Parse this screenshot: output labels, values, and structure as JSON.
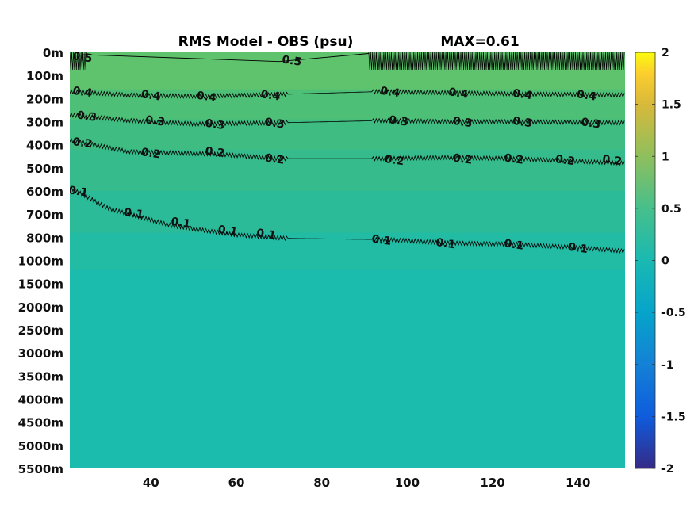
{
  "chart_data": {
    "type": "heatmap",
    "title": "RMS Model - OBS (psu)",
    "max_label": "MAX=0.61",
    "x_ticks": [
      "40",
      "60",
      "80",
      "100",
      "120",
      "140"
    ],
    "x_tick_values": [
      40,
      60,
      80,
      100,
      120,
      140
    ],
    "xlim": [
      21,
      151
    ],
    "y_ticks": [
      "0m",
      "100m",
      "200m",
      "300m",
      "400m",
      "500m",
      "600m",
      "700m",
      "800m",
      "1000m",
      "1500m",
      "2000m",
      "2500m",
      "3000m",
      "3500m",
      "4000m",
      "4500m",
      "5000m",
      "5500m"
    ],
    "y_reversed": true,
    "colorbar": {
      "colormap": "parula",
      "ticks": [
        "2",
        "1.5",
        "1",
        "0.5",
        "0",
        "-0.5",
        "-1",
        "-1.5",
        "-2"
      ],
      "tick_values": [
        2,
        1.5,
        1,
        0.5,
        0,
        -0.5,
        -1,
        -1.5,
        -2
      ],
      "clim": [
        -2,
        2
      ]
    },
    "contour_levels": [
      0.5,
      0.4,
      0.3,
      0.2,
      0.1
    ],
    "contours": [
      {
        "level": 0.4,
        "depth_index": [
          [
            21,
            1.7
          ],
          [
            35,
            1.85
          ],
          [
            50,
            1.9
          ],
          [
            65,
            1.85
          ],
          [
            93,
            1.7
          ],
          [
            110,
            1.75
          ],
          [
            125,
            1.8
          ],
          [
            151,
            1.85
          ]
        ],
        "labels": [
          {
            "text": "0.4",
            "x": 24,
            "d": 1.7
          },
          {
            "text": "0.4",
            "x": 40,
            "d": 1.85
          },
          {
            "text": "0.4",
            "x": 53,
            "d": 1.9
          },
          {
            "text": "0.4",
            "x": 68,
            "d": 1.85
          },
          {
            "text": "0.4",
            "x": 96,
            "d": 1.7
          },
          {
            "text": "0.4",
            "x": 112,
            "d": 1.75
          },
          {
            "text": "0.4",
            "x": 127,
            "d": 1.8
          },
          {
            "text": "0.4",
            "x": 142,
            "d": 1.85
          }
        ]
      },
      {
        "level": 0.3,
        "depth_index": [
          [
            21,
            2.7
          ],
          [
            35,
            2.95
          ],
          [
            50,
            3.1
          ],
          [
            70,
            3.05
          ],
          [
            95,
            2.95
          ],
          [
            110,
            3.0
          ],
          [
            125,
            3.0
          ],
          [
            151,
            3.05
          ]
        ],
        "labels": [
          {
            "text": "0.3",
            "x": 25,
            "d": 2.75
          },
          {
            "text": "0.3",
            "x": 41,
            "d": 2.95
          },
          {
            "text": "0.3",
            "x": 55,
            "d": 3.1
          },
          {
            "text": "0.3",
            "x": 69,
            "d": 3.05
          },
          {
            "text": "0.3",
            "x": 98,
            "d": 2.95
          },
          {
            "text": "0.3",
            "x": 113,
            "d": 3.0
          },
          {
            "text": "0.3",
            "x": 127,
            "d": 3.0
          },
          {
            "text": "0.3",
            "x": 143,
            "d": 3.05
          }
        ]
      },
      {
        "level": 0.2,
        "depth_index": [
          [
            21,
            3.8
          ],
          [
            35,
            4.3
          ],
          [
            55,
            4.4
          ],
          [
            70,
            4.6
          ],
          [
            93,
            4.6
          ],
          [
            110,
            4.55
          ],
          [
            125,
            4.6
          ],
          [
            151,
            4.8
          ]
        ],
        "labels": [
          {
            "text": "0.2",
            "x": 24,
            "d": 3.9
          },
          {
            "text": "0.2",
            "x": 40,
            "d": 4.35
          },
          {
            "text": "0.2",
            "x": 55,
            "d": 4.3
          },
          {
            "text": "0.2",
            "x": 69,
            "d": 4.6
          },
          {
            "text": "0.2",
            "x": 97,
            "d": 4.65
          },
          {
            "text": "0.2",
            "x": 113,
            "d": 4.6
          },
          {
            "text": "0.2",
            "x": 125,
            "d": 4.6
          },
          {
            "text": "0.2",
            "x": 137,
            "d": 4.65
          },
          {
            "text": "0.2",
            "x": 148,
            "d": 4.65
          }
        ]
      },
      {
        "level": 0.1,
        "depth_index": [
          [
            21,
            5.85
          ],
          [
            30,
            6.75
          ],
          [
            45,
            7.5
          ],
          [
            60,
            7.9
          ],
          [
            72,
            8.05
          ],
          [
            95,
            8.1
          ],
          [
            110,
            8.25
          ],
          [
            125,
            8.3
          ],
          [
            140,
            8.45
          ],
          [
            151,
            8.6
          ]
        ],
        "labels": [
          {
            "text": "0.1",
            "x": 23,
            "d": 6.0
          },
          {
            "text": "0.1",
            "x": 36,
            "d": 6.95
          },
          {
            "text": "0.1",
            "x": 47,
            "d": 7.35
          },
          {
            "text": "0.1",
            "x": 58,
            "d": 7.7
          },
          {
            "text": "0.1",
            "x": 67,
            "d": 7.85
          },
          {
            "text": "0.1",
            "x": 94,
            "d": 8.1
          },
          {
            "text": "0.1",
            "x": 109,
            "d": 8.25
          },
          {
            "text": "0.1",
            "x": 125,
            "d": 8.3
          },
          {
            "text": "0.1",
            "x": 140,
            "d": 8.45
          }
        ]
      },
      {
        "level": 0.5,
        "depth_index": [
          [
            24,
            0.1
          ],
          [
            70,
            0.4
          ],
          [
            91,
            0.05
          ]
        ],
        "labels": [
          {
            "text": "0.5",
            "x": 73,
            "d": 0.35
          },
          {
            "text": "0.5",
            "x": 24,
            "d": 0.2
          }
        ]
      }
    ],
    "field_bands": [
      {
        "d0": 0.0,
        "d1": 1.6,
        "color": "#5fc26c"
      },
      {
        "d0": 1.6,
        "d1": 2.9,
        "color": "#4ebf77"
      },
      {
        "d0": 2.9,
        "d1": 4.2,
        "color": "#3fbc82"
      },
      {
        "d0": 4.2,
        "d1": 6.0,
        "color": "#35bb8c"
      },
      {
        "d0": 6.0,
        "d1": 7.8,
        "color": "#2cbb98"
      },
      {
        "d0": 7.8,
        "d1": 9.4,
        "color": "#22bba4"
      },
      {
        "d0": 9.4,
        "d1": 18.0,
        "color": "#1bbcae"
      }
    ]
  }
}
